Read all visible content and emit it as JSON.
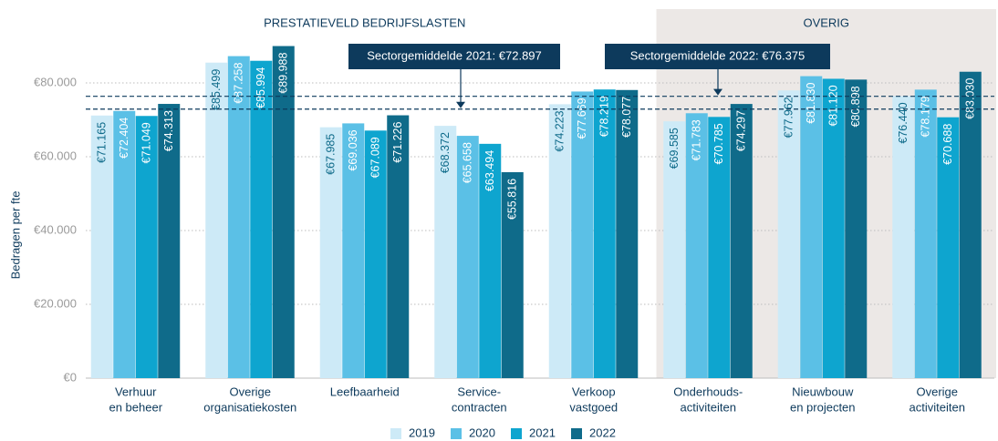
{
  "chart_data": {
    "type": "bar",
    "y_label": "Bedragen per fte",
    "categories": [
      [
        "Verhuur",
        "en beheer"
      ],
      [
        "Overige",
        "organisatiekosten"
      ],
      [
        "Leefbaarheid"
      ],
      [
        "Service-",
        "contracten"
      ],
      [
        "Verkoop",
        "vastgoed"
      ],
      [
        "Onderhouds-",
        "activiteiten"
      ],
      [
        "Nieuwbouw",
        "en projecten"
      ],
      [
        "Overige",
        "activiteiten"
      ]
    ],
    "sections": [
      {
        "title": "PRESTATIEVELD BEDRIJFSLASTEN",
        "start": 0,
        "end": 4,
        "shaded": false
      },
      {
        "title": "OVERIG",
        "start": 5,
        "end": 7,
        "shaded": true
      }
    ],
    "series": [
      {
        "name": "2019",
        "color": "#cdeaf7",
        "values": [
          71165,
          85499,
          67985,
          68372,
          74223,
          69585,
          77962,
          76440
        ],
        "value_labels": [
          "€71.165",
          "€85.499",
          "€67.985",
          "€68.372",
          "€74.223",
          "€69.585",
          "€77.962",
          "€76.440"
        ]
      },
      {
        "name": "2020",
        "color": "#5bc0e6",
        "values": [
          72404,
          87258,
          69036,
          65658,
          77669,
          71783,
          81830,
          78179
        ],
        "value_labels": [
          "€72.404",
          "€87.258",
          "€69.036",
          "€65.658",
          "€77.669",
          "€71.783",
          "€81.830",
          "€78.179"
        ]
      },
      {
        "name": "2021",
        "color": "#0ea5cf",
        "values": [
          71049,
          85994,
          67089,
          63494,
          78219,
          70785,
          81120,
          70688
        ],
        "value_labels": [
          "€71.049",
          "€85.994",
          "€67.089",
          "€63.494",
          "€78.219",
          "€70.785",
          "€81.120",
          "€70.688"
        ]
      },
      {
        "name": "2022",
        "color": "#0f6b8a",
        "values": [
          74313,
          89988,
          71226,
          55816,
          78077,
          74297,
          80898,
          83030
        ],
        "value_labels": [
          "€74.313",
          "€89.988",
          "€71.226",
          "€55.816",
          "€78.077",
          "€74.297",
          "€80.898",
          "€83.030"
        ]
      }
    ],
    "references": [
      {
        "label": "Sectorgemiddelde 2021: €72.897",
        "value": 72897
      },
      {
        "label": "Sectorgemiddelde 2022: €76.375",
        "value": 76375
      }
    ],
    "ylim": [
      0,
      100000
    ],
    "yticks": [
      {
        "value": 0,
        "label": "€0"
      },
      {
        "value": 20000,
        "label": "€20.000"
      },
      {
        "value": 40000,
        "label": "€40.000"
      },
      {
        "value": 60000,
        "label": "€60.000"
      },
      {
        "value": 80000,
        "label": "€80.000"
      }
    ],
    "grid": true
  }
}
